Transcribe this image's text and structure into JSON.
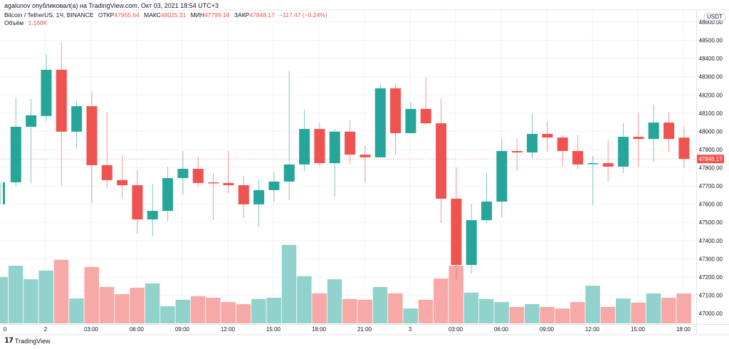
{
  "header": {
    "author_line": "agalunov опубликовал(а) на TradingView.com, Окт 03, 2021 18:54 UTC+3",
    "symbol": "Bitcoin / TetherUS, 1Ч, BINANCE",
    "open_label": "ОТКР",
    "open_value": "47965.64",
    "high_label": "МАКС",
    "high_value": "48025.31",
    "low_label": "МИН",
    "low_value": "47799.18",
    "close_label": "ЗАКР",
    "close_value": "47848.17",
    "change": "−117.47 (−0.24%)",
    "volume_label": "Объём",
    "volume_value": "1.168K"
  },
  "price_axis": {
    "currency": "USDT",
    "last_price_label": "47848.17"
  },
  "footer": {
    "brand": "TradingView",
    "logo_icon": "tradingview-logo-icon"
  },
  "colors": {
    "up": "#26a69a",
    "down": "#ef5350",
    "volume_up": "#92d2cc",
    "volume_down": "#f7a9a7",
    "grid": "#f0f3fa"
  },
  "chart_data": {
    "type": "candlestick",
    "interval": "1h",
    "ylim": [
      47000,
      48600
    ],
    "y_ticks": [
      "47000.00",
      "47100.00",
      "47200.00",
      "47300.00",
      "47400.00",
      "47500.00",
      "47600.00",
      "47700.00",
      "47800.00",
      "47900.00",
      "48000.00",
      "48100.00",
      "48200.00",
      "48300.00",
      "48400.00",
      "48500.00",
      "48600.00"
    ],
    "x_ticks": [
      "0",
      "2",
      "03:00",
      "06:00",
      "09:00",
      "12:00",
      "15:00",
      "18:00",
      "21:00",
      "3",
      "03:00",
      "06:00",
      "09:00",
      "12:00",
      "15:00",
      "18:00"
    ],
    "grid": true,
    "ohlc": [
      [
        47599,
        47720,
        47599,
        47720
      ],
      [
        47720,
        48185,
        47696,
        48025
      ],
      [
        48025,
        48177,
        47716,
        48088
      ],
      [
        48084,
        48424,
        48056,
        48338
      ],
      [
        48338,
        48490,
        47700,
        47998
      ],
      [
        47998,
        48166,
        47904,
        48138
      ],
      [
        48138,
        48221,
        47606,
        47814
      ],
      [
        47814,
        48107,
        47685,
        47732
      ],
      [
        47732,
        47872,
        47630,
        47704
      ],
      [
        47704,
        47786,
        47438,
        47516
      ],
      [
        47516,
        47712,
        47422,
        47563
      ],
      [
        47563,
        47806,
        47505,
        47743
      ],
      [
        47743,
        47892,
        47653,
        47794
      ],
      [
        47794,
        47861,
        47696,
        47716
      ],
      [
        47720,
        47771,
        47512,
        47716
      ],
      [
        47716,
        47892,
        47657,
        47704
      ],
      [
        47704,
        47755,
        47524,
        47599
      ],
      [
        47599,
        47732,
        47473,
        47677
      ],
      [
        47677,
        47778,
        47614,
        47724
      ],
      [
        47724,
        48334,
        47622,
        47818
      ],
      [
        47818,
        48119,
        47782,
        48013
      ],
      [
        48013,
        48048,
        47806,
        47825
      ],
      [
        47825,
        48013,
        47642,
        47998
      ],
      [
        47998,
        48060,
        47822,
        47872
      ],
      [
        47872,
        47923,
        47716,
        47857
      ],
      [
        47857,
        48264,
        47857,
        48236
      ],
      [
        48236,
        48264,
        47868,
        47990
      ],
      [
        47990,
        48162,
        47986,
        48123
      ],
      [
        48123,
        48295,
        48037,
        48044
      ],
      [
        48044,
        48181,
        47497,
        47630
      ],
      [
        47630,
        47802,
        47188,
        47266
      ],
      [
        47266,
        47602,
        47219,
        47512
      ],
      [
        47512,
        47767,
        47497,
        47614
      ],
      [
        47614,
        47958,
        47528,
        47892
      ],
      [
        47892,
        47958,
        47782,
        47884
      ],
      [
        47884,
        48095,
        47853,
        47986
      ],
      [
        47986,
        48052,
        47888,
        47966
      ],
      [
        47966,
        47978,
        47806,
        47892
      ],
      [
        47892,
        47978,
        47794,
        47818
      ],
      [
        47822,
        47865,
        47595,
        47825
      ],
      [
        47825,
        47951,
        47724,
        47806
      ],
      [
        47806,
        48044,
        47771,
        47970
      ],
      [
        47970,
        48103,
        47802,
        47958
      ],
      [
        47958,
        48146,
        47833,
        48048
      ],
      [
        48048,
        48103,
        47888,
        47958
      ],
      [
        47965.64,
        48025.31,
        47799.18,
        47848.17
      ]
    ],
    "volume_k": [
      1.81,
      2.25,
      1.72,
      2.06,
      2.48,
      0.97,
      2.2,
      1.42,
      1.14,
      1.39,
      1.56,
      0.67,
      0.92,
      1.06,
      1.0,
      0.83,
      0.75,
      0.95,
      1.0,
      3.06,
      1.84,
      1.17,
      1.72,
      0.95,
      0.92,
      1.42,
      1.17,
      0.58,
      0.92,
      1.75,
      2.25,
      1.2,
      0.95,
      0.83,
      0.64,
      0.75,
      0.64,
      0.58,
      0.83,
      1.47,
      0.64,
      0.97,
      0.81,
      1.17,
      1.0,
      1.168
    ],
    "last_price": 47848.17
  }
}
